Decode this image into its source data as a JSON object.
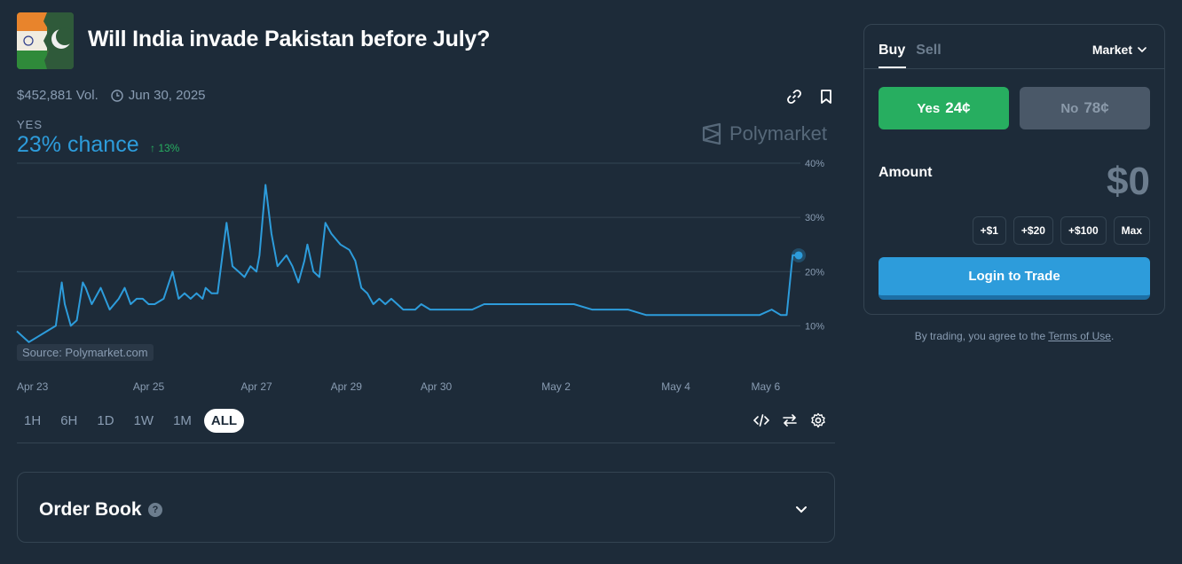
{
  "header": {
    "title": "Will India invade Pakistan before July?",
    "volume": "$452,881 Vol.",
    "end_date": "Jun 30, 2025"
  },
  "outcome": {
    "label": "YES",
    "chance": "23% chance",
    "change": "↑ 13%"
  },
  "watermark": "Polymarket",
  "source": "Source: Polymarket.com",
  "time_ranges": [
    "1H",
    "6H",
    "1D",
    "1W",
    "1M",
    "ALL"
  ],
  "active_range": "ALL",
  "order_book": {
    "title": "Order Book",
    "help": "?"
  },
  "trade_panel": {
    "tab_buy": "Buy",
    "tab_sell": "Sell",
    "order_type": "Market",
    "yes_label": "Yes",
    "yes_price": "24¢",
    "no_label": "No",
    "no_price": "78¢",
    "amount_label": "Amount",
    "amount_value": "$0",
    "quick_amounts": [
      "+$1",
      "+$20",
      "+$100",
      "Max"
    ],
    "login_button": "Login to Trade"
  },
  "terms": {
    "prefix": "By trading, you agree to the ",
    "link": "Terms of Use",
    "suffix": "."
  },
  "colors": {
    "accent": "#2d9cdb",
    "yes": "#27ae60",
    "background": "#1d2b39"
  },
  "chart_data": {
    "type": "line",
    "ylim": [
      5,
      40
    ],
    "yticks": [
      "40%",
      "30%",
      "20%",
      "10%"
    ],
    "ytick_values": [
      40,
      30,
      20,
      10
    ],
    "xticks": [
      "Apr 23",
      "Apr 25",
      "Apr 27",
      "Apr 29",
      "Apr 30",
      "May 2",
      "May 4",
      "May 6"
    ],
    "xtick_values": [
      0,
      2.2,
      4.0,
      5.5,
      7.0,
      9.0,
      11.0,
      12.5
    ],
    "series": [
      {
        "x": [
          0,
          0.2,
          0.35,
          0.5,
          0.65,
          0.75,
          0.8,
          0.9,
          1.0,
          1.1,
          1.15,
          1.25,
          1.4,
          1.55,
          1.7,
          1.8,
          1.9,
          2.0,
          2.1,
          2.2,
          2.3,
          2.45,
          2.6,
          2.7,
          2.8,
          2.9,
          3.0,
          3.1,
          3.15,
          3.25,
          3.35,
          3.5,
          3.6,
          3.7,
          3.8,
          3.9,
          4.0,
          4.05,
          4.15,
          4.25,
          4.35,
          4.5,
          4.6,
          4.7,
          4.8,
          4.85,
          4.95,
          5.05,
          5.15,
          5.25,
          5.4,
          5.55,
          5.65,
          5.75,
          5.85,
          5.95,
          6.05,
          6.15,
          6.25,
          6.35,
          6.45,
          6.55,
          6.65,
          6.75,
          6.9,
          7.05,
          7.2,
          7.4,
          7.6,
          7.8,
          8.0,
          8.3,
          8.6,
          9.0,
          9.3,
          9.6,
          9.9,
          10.2,
          10.5,
          10.8,
          11.0,
          11.2,
          11.5,
          11.8,
          12.0,
          12.2,
          12.4,
          12.6,
          12.75,
          12.85,
          12.95,
          13.05
        ],
        "y": [
          9,
          7,
          8,
          9,
          10,
          18,
          14,
          10,
          11,
          18,
          17,
          14,
          17,
          13,
          15,
          17,
          14,
          15,
          15,
          14,
          14,
          15,
          20,
          15,
          16,
          15,
          16,
          15,
          17,
          16,
          16,
          29,
          21,
          20,
          19,
          21,
          20,
          23,
          36,
          27,
          21,
          23,
          21,
          18,
          22,
          25,
          20,
          19,
          29,
          27,
          25,
          24,
          22,
          17,
          16,
          14,
          15,
          14,
          15,
          14,
          13,
          13,
          13,
          14,
          13,
          13,
          13,
          13,
          13,
          14,
          14,
          14,
          14,
          14,
          14,
          13,
          13,
          13,
          12,
          12,
          12,
          12,
          12,
          12,
          12,
          12,
          12,
          13,
          12,
          12,
          23,
          23
        ]
      }
    ]
  }
}
